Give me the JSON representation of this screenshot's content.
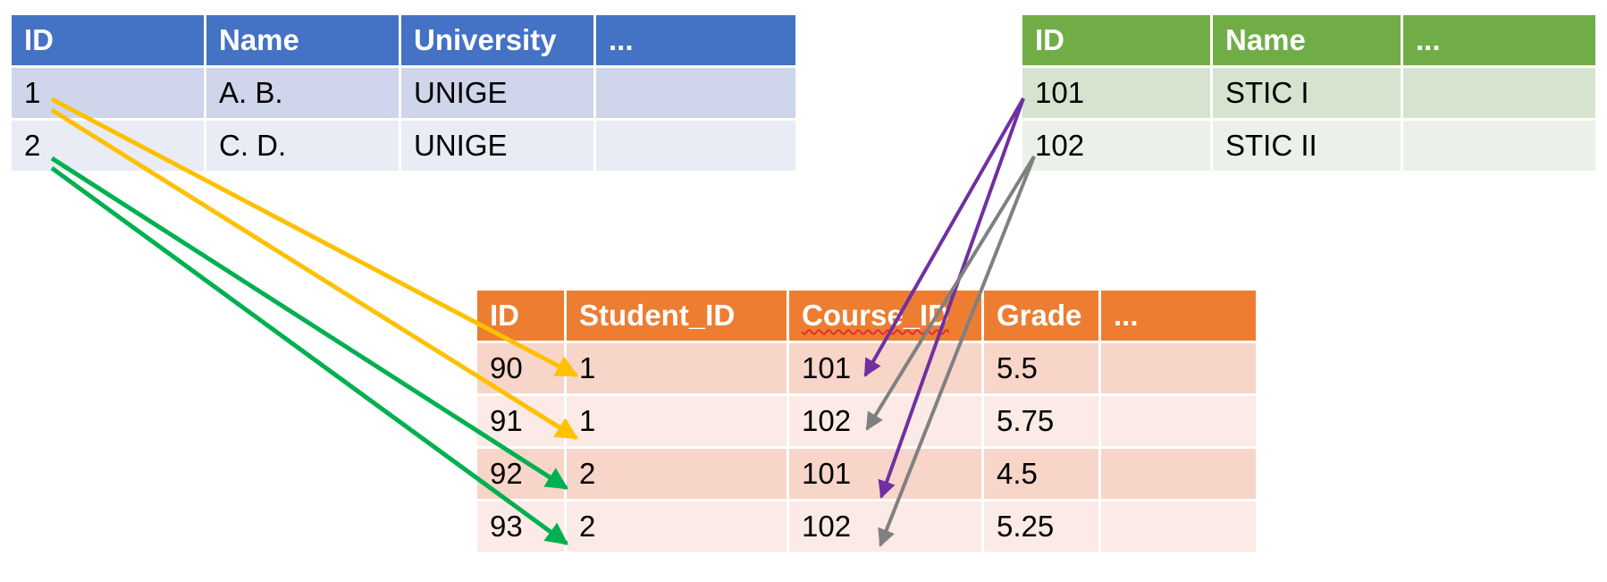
{
  "students_table": {
    "headers": [
      "ID",
      "Name",
      "University",
      "..."
    ],
    "rows": [
      [
        "1",
        "A. B.",
        "UNIGE",
        ""
      ],
      [
        "2",
        "C. D.",
        "UNIGE",
        ""
      ]
    ]
  },
  "courses_table": {
    "headers": [
      "ID",
      "Name",
      "..."
    ],
    "rows": [
      [
        "101",
        "STIC I",
        ""
      ],
      [
        "102",
        "STIC II",
        ""
      ]
    ]
  },
  "enrollments_table": {
    "headers": [
      "ID",
      "Student_ID",
      "Course_ID",
      "Grade",
      "..."
    ],
    "rows": [
      [
        "90",
        "1",
        "101",
        "5.5",
        ""
      ],
      [
        "91",
        "1",
        "102",
        "5.75",
        ""
      ],
      [
        "92",
        "2",
        "101",
        "4.5",
        ""
      ],
      [
        "93",
        "2",
        "102",
        "5.25",
        ""
      ]
    ]
  },
  "colors": {
    "students_header": "#4472c4",
    "courses_header": "#70ad47",
    "enrollments_header": "#ed7d31",
    "link_student_1": "#ffc000",
    "link_student_2": "#00b050",
    "link_course_101": "#7030a0",
    "link_course_102": "#808080"
  }
}
